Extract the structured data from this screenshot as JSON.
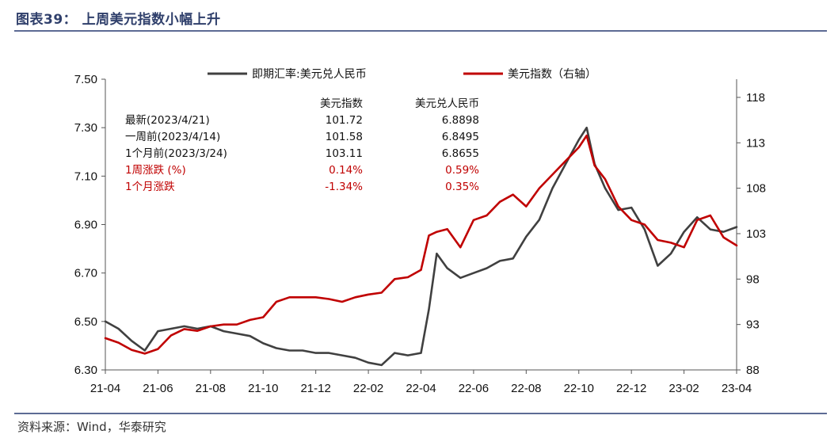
{
  "page": {
    "title": "图表39： 上周美元指数小幅上升",
    "source": "资料来源：Wind，华泰研究"
  },
  "chart_data": {
    "type": "line",
    "title": "",
    "xlabel": "",
    "ylabel": "",
    "x_tick_labels": [
      "21-04",
      "21-06",
      "21-08",
      "21-10",
      "21-12",
      "22-02",
      "22-04",
      "22-06",
      "22-08",
      "22-10",
      "22-12",
      "23-02",
      "23-04"
    ],
    "x_range": [
      "2021-04",
      "2023-04"
    ],
    "y_left": {
      "min": 6.3,
      "max": 7.5,
      "ticks": [
        "6.30",
        "6.50",
        "6.70",
        "6.90",
        "7.10",
        "7.30",
        "7.50"
      ]
    },
    "y_right": {
      "min": 88,
      "max": 120,
      "ticks": [
        "88",
        "93",
        "98",
        "103",
        "108",
        "113",
        "118"
      ]
    },
    "legend_position": "top-center",
    "grid": false,
    "series": [
      {
        "name": "即期汇率:美元兑人民币",
        "axis": "left",
        "color": "#404040",
        "x": [
          "2021-04",
          "2021-04.5",
          "2021-05",
          "2021-05.5",
          "2021-06",
          "2021-06.5",
          "2021-07",
          "2021-07.5",
          "2021-08",
          "2021-08.5",
          "2021-09",
          "2021-09.5",
          "2021-10",
          "2021-10.5",
          "2021-11",
          "2021-11.5",
          "2021-12",
          "2021-12.5",
          "2022-01",
          "2022-01.5",
          "2022-02",
          "2022-02.5",
          "2022-03",
          "2022-03.5",
          "2022-04",
          "2022-04.3",
          "2022-04.6",
          "2022-05",
          "2022-05.5",
          "2022-06",
          "2022-06.5",
          "2022-07",
          "2022-07.5",
          "2022-08",
          "2022-08.5",
          "2022-09",
          "2022-09.5",
          "2022-10",
          "2022-10.3",
          "2022-10.6",
          "2022-11",
          "2022-11.5",
          "2022-12",
          "2022-12.5",
          "2023-01",
          "2023-01.5",
          "2023-02",
          "2023-02.5",
          "2023-03",
          "2023-03.5",
          "2023-04"
        ],
        "values": [
          6.5,
          6.47,
          6.42,
          6.38,
          6.46,
          6.47,
          6.48,
          6.47,
          6.48,
          6.46,
          6.45,
          6.44,
          6.41,
          6.39,
          6.38,
          6.38,
          6.37,
          6.37,
          6.36,
          6.35,
          6.33,
          6.32,
          6.37,
          6.36,
          6.37,
          6.55,
          6.78,
          6.72,
          6.68,
          6.7,
          6.72,
          6.75,
          6.76,
          6.85,
          6.92,
          7.05,
          7.15,
          7.25,
          7.3,
          7.15,
          7.05,
          6.96,
          6.97,
          6.88,
          6.73,
          6.78,
          6.87,
          6.93,
          6.88,
          6.87,
          6.89
        ]
      },
      {
        "name": "美元指数（右轴）",
        "axis": "right",
        "color": "#c00000",
        "x": [
          "2021-04",
          "2021-04.5",
          "2021-05",
          "2021-05.5",
          "2021-06",
          "2021-06.5",
          "2021-07",
          "2021-07.5",
          "2021-08",
          "2021-08.5",
          "2021-09",
          "2021-09.5",
          "2021-10",
          "2021-10.5",
          "2021-11",
          "2021-11.5",
          "2021-12",
          "2021-12.5",
          "2022-01",
          "2022-01.5",
          "2022-02",
          "2022-02.5",
          "2022-03",
          "2022-03.5",
          "2022-04",
          "2022-04.3",
          "2022-04.6",
          "2022-05",
          "2022-05.5",
          "2022-06",
          "2022-06.5",
          "2022-07",
          "2022-07.5",
          "2022-08",
          "2022-08.5",
          "2022-09",
          "2022-09.5",
          "2022-10",
          "2022-10.3",
          "2022-10.6",
          "2022-11",
          "2022-11.5",
          "2022-12",
          "2022-12.5",
          "2023-01",
          "2023-01.5",
          "2023-02",
          "2023-02.5",
          "2023-03",
          "2023-03.5",
          "2023-04"
        ],
        "values": [
          91.5,
          91.0,
          90.2,
          89.8,
          90.3,
          91.8,
          92.5,
          92.3,
          92.8,
          93.0,
          93.0,
          93.5,
          93.8,
          95.5,
          96.0,
          96.0,
          96.0,
          95.8,
          95.5,
          96.0,
          96.3,
          96.5,
          98.0,
          98.2,
          99.0,
          102.8,
          103.2,
          103.5,
          101.5,
          104.5,
          105.0,
          106.5,
          107.3,
          106.0,
          108.0,
          109.5,
          111.0,
          112.5,
          113.8,
          110.5,
          109.0,
          106.0,
          104.5,
          104.0,
          102.3,
          102.0,
          101.5,
          104.5,
          105.0,
          102.6,
          101.7
        ]
      }
    ],
    "table": {
      "headers": [
        "",
        "美元指数",
        "美元兑人民币"
      ],
      "rows": [
        {
          "label": "最新(2023/4/21)",
          "usd_index": "101.72",
          "usdcny": "6.8898",
          "highlight": false
        },
        {
          "label": "一周前(2023/4/14)",
          "usd_index": "101.58",
          "usdcny": "6.8495",
          "highlight": false
        },
        {
          "label": "1个月前(2023/3/24)",
          "usd_index": "103.11",
          "usdcny": "6.8655",
          "highlight": false
        },
        {
          "label": "1周涨跌 (%)",
          "usd_index": "0.14%",
          "usdcny": "0.59%",
          "highlight": true
        },
        {
          "label": "1个月涨跌",
          "usd_index": "-1.34%",
          "usdcny": "0.35%",
          "highlight": true
        }
      ]
    }
  }
}
